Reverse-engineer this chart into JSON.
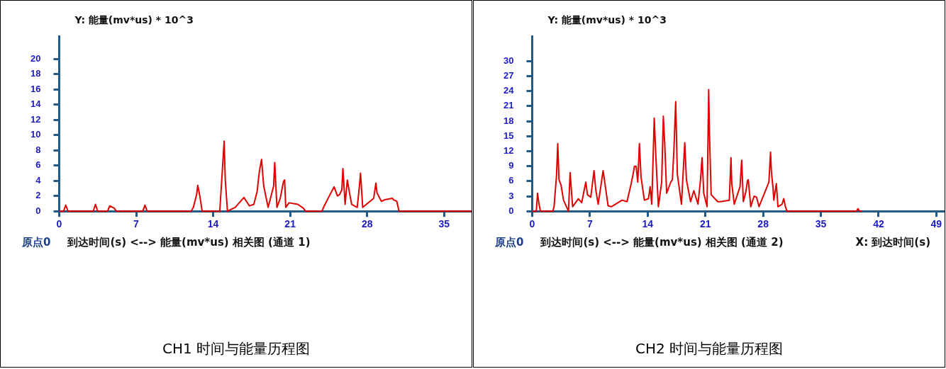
{
  "chart_data": [
    {
      "type": "line",
      "title": "CH1 时间与能量历程图",
      "ylabel": "Y: 能量(mv*us) * 10^3",
      "xlabel": "到达时间(s) <--> 能量(mv*us) 相关图 (通道 1)",
      "annotations": [
        "原点0"
      ],
      "color": "#e00000",
      "grid": false,
      "x": [
        0,
        0.4,
        0.6,
        0.8,
        3.1,
        3.3,
        3.5,
        4.4,
        4.6,
        5.0,
        5.2,
        7.6,
        7.8,
        8.0,
        12.0,
        12.2,
        12.5,
        12.6,
        12.8,
        13.0,
        14.6,
        14.8,
        15.0,
        15.1,
        15.3,
        16.0,
        16.8,
        17.3,
        17.7,
        18.0,
        18.2,
        18.4,
        18.6,
        19.0,
        19.5,
        19.6,
        19.8,
        20.1,
        20.4,
        20.5,
        20.6,
        20.9,
        21.7,
        22.2,
        22.4,
        23.9,
        24.1,
        24.6,
        25.0,
        25.3,
        25.5,
        25.7,
        25.8,
        26.0,
        26.2,
        26.4,
        26.6,
        27.1,
        27.3,
        27.4,
        27.6,
        28.6,
        28.8,
        28.9,
        29.3,
        29.6,
        30.3,
        30.4,
        30.7,
        30.9,
        37.5
      ],
      "values": [
        0,
        0,
        0.8,
        0,
        0,
        0.9,
        0,
        0,
        0.7,
        0.4,
        0,
        0,
        0.8,
        0,
        0,
        0.5,
        2.2,
        3.4,
        1.9,
        0,
        0,
        4.5,
        9.2,
        4.2,
        0,
        0.5,
        1.8,
        0.7,
        0.9,
        2.6,
        5.2,
        6.8,
        3.3,
        0.5,
        3.3,
        6.4,
        0.5,
        1.7,
        3.9,
        4.1,
        0.5,
        1.1,
        0.9,
        0.4,
        0,
        0,
        0.7,
        2.1,
        3.2,
        2.0,
        2.2,
        2.8,
        5.6,
        0.9,
        4.1,
        2.4,
        0.9,
        0.5,
        3.3,
        5.0,
        0.5,
        1.7,
        3.7,
        2.4,
        1.3,
        1.5,
        1.7,
        1.5,
        1.3,
        0,
        0
      ],
      "xlim": [
        0,
        37.5
      ],
      "xticks": [
        0,
        7,
        14,
        21,
        28,
        35
      ],
      "ylim": [
        0,
        23
      ],
      "yticks": [
        0,
        2,
        4,
        6,
        8,
        10,
        12,
        14,
        16,
        18,
        20
      ]
    },
    {
      "type": "line",
      "title": "CH2 时间与能量历程图",
      "ylabel": "Y: 能量(mv*us) * 10^3",
      "xlabel": "到达时间(s) <--> 能量(mv*us) 相关图 (通道 2)",
      "annotations": [
        "原点0",
        "X: 到达时间(s)"
      ],
      "color": "#e00000",
      "grid": false,
      "x": [
        0,
        0.5,
        0.65,
        0.8,
        1.0,
        2.5,
        2.65,
        2.95,
        3.1,
        3.25,
        3.5,
        3.8,
        4.4,
        4.6,
        4.9,
        5.6,
        6.0,
        6.5,
        6.7,
        7.1,
        7.5,
        7.7,
        8.0,
        8.6,
        9.2,
        9.6,
        10.9,
        11.5,
        12.0,
        12.2,
        12.4,
        12.6,
        12.8,
        13.0,
        13.2,
        13.6,
        14.1,
        14.3,
        14.5,
        14.8,
        15.0,
        15.3,
        15.7,
        15.9,
        16.1,
        16.3,
        16.8,
        17.0,
        17.2,
        17.4,
        17.6,
        18.1,
        18.5,
        18.7,
        19.2,
        19.6,
        20.1,
        20.4,
        20.6,
        20.8,
        21.2,
        21.4,
        21.5,
        21.7,
        22.5,
        22.8,
        23.9,
        24.1,
        24.2,
        24.5,
        25.2,
        25.4,
        25.6,
        25.9,
        26.1,
        26.2,
        26.5,
        26.9,
        27.2,
        27.5,
        28.7,
        28.9,
        29.0,
        29.2,
        29.3,
        29.6,
        29.8,
        30.3,
        30.5,
        30.7,
        30.9,
        39.3,
        39.5,
        39.7,
        40
      ],
      "values": [
        0,
        0,
        3.6,
        1.7,
        0,
        0,
        0.9,
        7.1,
        13.5,
        6.3,
        5.2,
        2.2,
        0,
        7.7,
        0.9,
        2.5,
        1.7,
        5.8,
        3.3,
        2.8,
        8.1,
        4.4,
        1.4,
        8.1,
        1.1,
        0.9,
        2.2,
        1.9,
        5.5,
        7.1,
        9.0,
        9.0,
        5.8,
        13.5,
        6.8,
        2.2,
        2.5,
        4.9,
        1.4,
        18.6,
        10.7,
        0.9,
        5.8,
        19.0,
        12.4,
        3.6,
        5.8,
        6.3,
        12.9,
        21.9,
        7.4,
        1.4,
        13.7,
        6.3,
        1.9,
        4.1,
        1.4,
        6.1,
        10.7,
        3.6,
        0.9,
        24.3,
        15.1,
        3.3,
        1.9,
        1.9,
        2.2,
        10.7,
        5.5,
        1.4,
        4.9,
        10.2,
        1.9,
        3.8,
        6.1,
        6.3,
        0.9,
        3.0,
        2.8,
        0.9,
        5.8,
        11.8,
        8.0,
        4.6,
        2.2,
        5.5,
        0.9,
        1.4,
        2.5,
        0.9,
        0,
        0,
        0.5,
        0,
        0
      ],
      "xlim": [
        0,
        50
      ],
      "xticks": [
        0,
        7,
        14,
        21,
        28,
        35,
        42,
        49
      ],
      "ylim": [
        0,
        35
      ],
      "yticks": [
        0,
        3,
        6,
        9,
        12,
        15,
        18,
        21,
        24,
        27,
        30
      ]
    }
  ]
}
